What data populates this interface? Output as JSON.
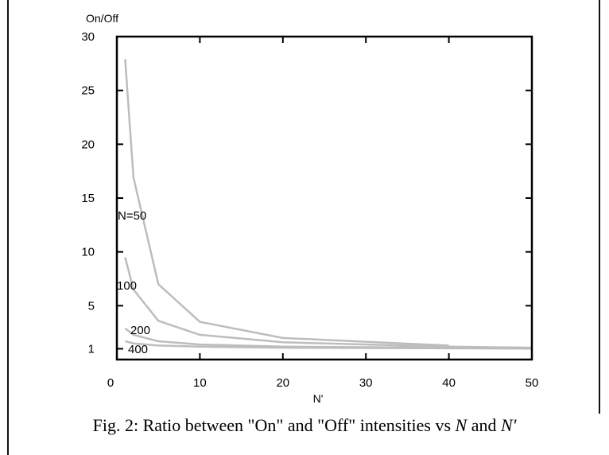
{
  "caption": {
    "prefix": "Fig. 2: Ratio between \"On\" and \"Off\" intensities vs ",
    "var1": "N",
    "middle": " and ",
    "var2": "N'"
  },
  "chart_data": {
    "type": "line",
    "xlabel": "N'",
    "ylabel": "On/Off",
    "xlim": [
      0,
      50
    ],
    "ylim": [
      0,
      30
    ],
    "x_ticks": [
      0,
      10,
      20,
      30,
      40,
      50
    ],
    "y_ticks": [
      1,
      5,
      10,
      15,
      20,
      25,
      30
    ],
    "series": [
      {
        "name": "N=50",
        "x": [
          1,
          2,
          5,
          10,
          20,
          40
        ],
        "y": [
          27.9,
          16.9,
          7.0,
          3.5,
          2.0,
          1.3
        ]
      },
      {
        "name": "100",
        "x": [
          1,
          2,
          5,
          10,
          20,
          40,
          50
        ],
        "y": [
          9.5,
          6.5,
          3.6,
          2.3,
          1.6,
          1.2,
          1.1
        ]
      },
      {
        "name": "200",
        "x": [
          1,
          2,
          5,
          10,
          20,
          50
        ],
        "y": [
          2.9,
          2.3,
          1.7,
          1.4,
          1.2,
          1.05
        ]
      },
      {
        "name": "400",
        "x": [
          1,
          2,
          5,
          10,
          20,
          50
        ],
        "y": [
          1.7,
          1.5,
          1.3,
          1.2,
          1.1,
          1.02
        ]
      }
    ]
  }
}
